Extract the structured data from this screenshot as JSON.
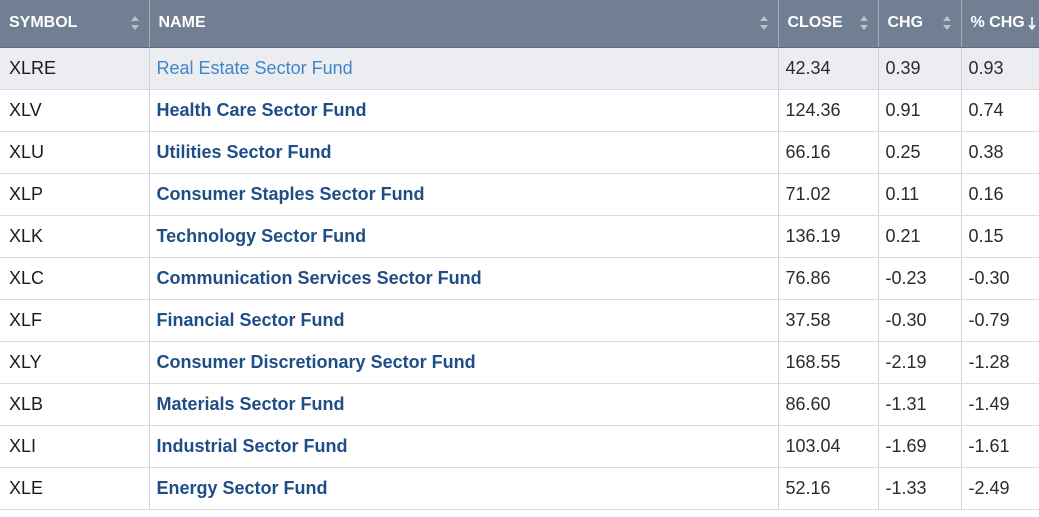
{
  "header": {
    "symbol": "SYMBOL",
    "name": "NAME",
    "close": "CLOSE",
    "chg": "CHG",
    "pct_chg": "% CHG"
  },
  "icons": {
    "sort_both": "sort-updown-icon",
    "sort_desc": "sort-down-arrow-icon"
  },
  "colors": {
    "header_bg": "#717f93",
    "link": "#1f4e86",
    "link_hover": "#3f86c9",
    "highlight_row": "#ebedf1"
  },
  "rows": [
    {
      "symbol": "XLRE",
      "name": "Real Estate Sector Fund",
      "close": "42.34",
      "chg": "0.39",
      "pct": "0.93"
    },
    {
      "symbol": "XLV",
      "name": "Health Care Sector Fund",
      "close": "124.36",
      "chg": "0.91",
      "pct": "0.74"
    },
    {
      "symbol": "XLU",
      "name": "Utilities Sector Fund",
      "close": "66.16",
      "chg": "0.25",
      "pct": "0.38"
    },
    {
      "symbol": "XLP",
      "name": "Consumer Staples Sector Fund",
      "close": "71.02",
      "chg": "0.11",
      "pct": "0.16"
    },
    {
      "symbol": "XLK",
      "name": "Technology Sector Fund",
      "close": "136.19",
      "chg": "0.21",
      "pct": "0.15"
    },
    {
      "symbol": "XLC",
      "name": "Communication Services Sector Fund",
      "close": "76.86",
      "chg": "-0.23",
      "pct": "-0.30"
    },
    {
      "symbol": "XLF",
      "name": "Financial Sector Fund",
      "close": "37.58",
      "chg": "-0.30",
      "pct": "-0.79"
    },
    {
      "symbol": "XLY",
      "name": "Consumer Discretionary Sector Fund",
      "close": "168.55",
      "chg": "-2.19",
      "pct": "-1.28"
    },
    {
      "symbol": "XLB",
      "name": "Materials Sector Fund",
      "close": "86.60",
      "chg": "-1.31",
      "pct": "-1.49"
    },
    {
      "symbol": "XLI",
      "name": "Industrial Sector Fund",
      "close": "103.04",
      "chg": "-1.69",
      "pct": "-1.61"
    },
    {
      "symbol": "XLE",
      "name": "Energy Sector Fund",
      "close": "52.16",
      "chg": "-1.33",
      "pct": "-2.49"
    }
  ]
}
